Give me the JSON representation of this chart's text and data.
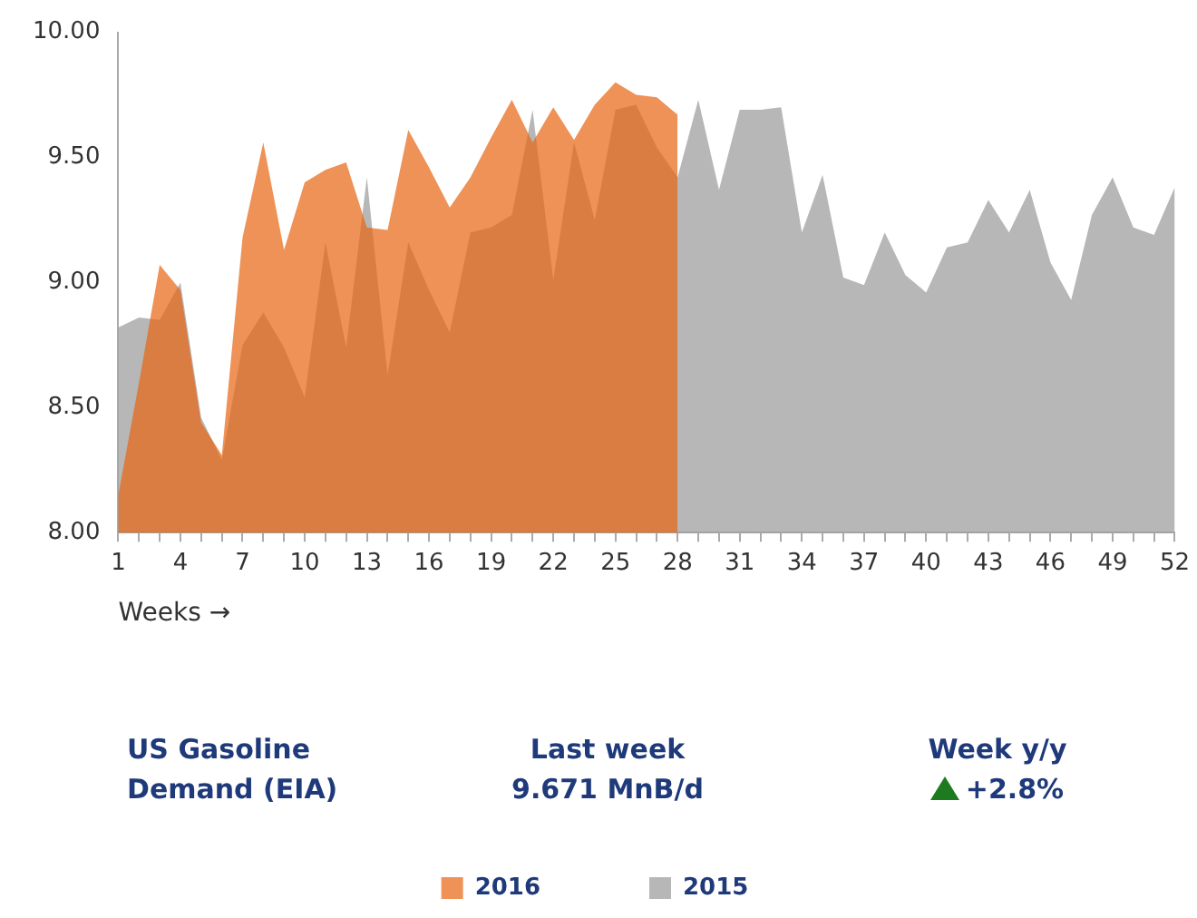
{
  "chart_data": {
    "type": "area",
    "xlabel": "Weeks →",
    "categories": [
      "1",
      null,
      null,
      "4",
      null,
      null,
      "7",
      null,
      null,
      "10",
      null,
      null,
      "13",
      null,
      null,
      "16",
      null,
      null,
      "19",
      null,
      null,
      "22",
      null,
      null,
      "25",
      null,
      null,
      "28",
      null,
      null,
      "31",
      null,
      null,
      "34",
      null,
      null,
      "37",
      null,
      null,
      "40",
      null,
      null,
      "43",
      null,
      null,
      "46",
      null,
      null,
      "49",
      null,
      null,
      "52"
    ],
    "series": [
      {
        "name": "2016",
        "color": "#e86410",
        "values": [
          8.15,
          8.6,
          9.07,
          8.97,
          8.44,
          8.31,
          9.18,
          9.56,
          9.13,
          9.4,
          9.45,
          9.48,
          9.22,
          9.21,
          9.61,
          9.46,
          9.3,
          9.42,
          9.58,
          9.73,
          9.56,
          9.7,
          9.57,
          9.71,
          9.8,
          9.75,
          9.74,
          9.67,
          null,
          null,
          null,
          null,
          null,
          null,
          null,
          null,
          null,
          null,
          null,
          null,
          null,
          null,
          null,
          null,
          null,
          null,
          null,
          null,
          null,
          null,
          null,
          null
        ]
      },
      {
        "name": "2015",
        "color": "#999999",
        "values": [
          8.82,
          8.86,
          8.85,
          9.0,
          8.46,
          8.29,
          8.75,
          8.88,
          8.74,
          8.54,
          9.16,
          8.74,
          9.42,
          8.63,
          9.16,
          8.97,
          8.8,
          9.2,
          9.22,
          9.27,
          9.69,
          9.01,
          9.56,
          9.25,
          9.69,
          9.71,
          9.54,
          9.42,
          9.73,
          9.37,
          9.69,
          9.69,
          9.7,
          9.2,
          9.43,
          9.02,
          8.99,
          9.2,
          9.03,
          8.96,
          9.14,
          9.16,
          9.33,
          9.2,
          9.37,
          9.08,
          8.93,
          9.27,
          9.42,
          9.22,
          9.19,
          9.38
        ]
      }
    ],
    "ylim": [
      8,
      10
    ],
    "yticks": [
      {
        "value": 8,
        "label": "8.00"
      },
      {
        "value": 8.5,
        "label": "8.50"
      },
      {
        "value": 9,
        "label": "9.00"
      },
      {
        "value": 9.5,
        "label": "9.50"
      },
      {
        "value": 10,
        "label": "10.00"
      }
    ],
    "grid": false,
    "legend": "bottom",
    "annotations": [
      "US Gasoline\nDemand (EIA)",
      "Last week\n9.671 MnB/d",
      "Week y/y\n+2.8%"
    ]
  }
}
